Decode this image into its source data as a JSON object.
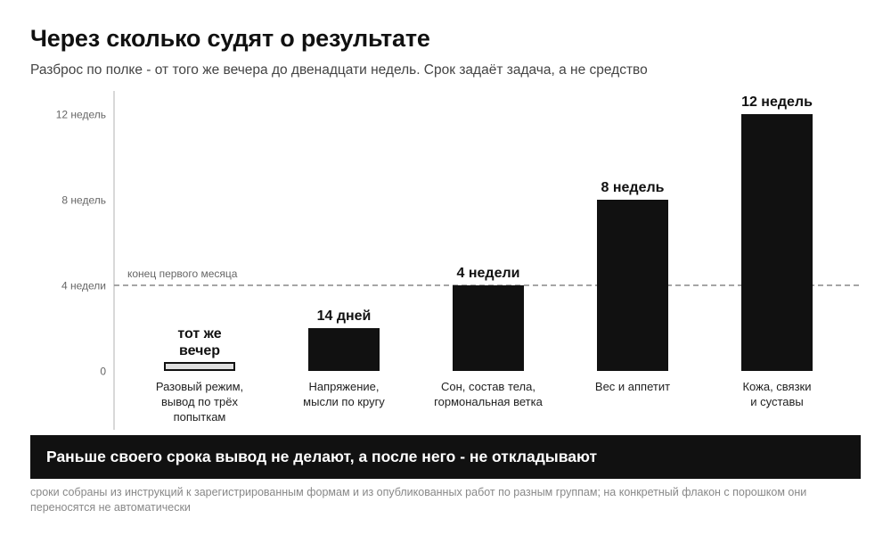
{
  "header": {
    "title": "Через сколько судят о результате",
    "subtitle": "Разброс по полке - от того же вечера до двенадцати недель. Срок задаёт задача, а не средство"
  },
  "chart_data": {
    "type": "bar",
    "categories": [
      [
        "Разовый режим,",
        "вывод по трёх",
        "попыткам"
      ],
      [
        "Напряжение,",
        "мысли по кругу"
      ],
      [
        "Сон, состав тела,",
        "гормональная ветка"
      ],
      [
        "Вес и аппетит"
      ],
      [
        "Кожа, связки",
        "и суставы"
      ]
    ],
    "values": [
      0,
      2,
      4,
      8,
      12
    ],
    "value_labels": [
      [
        "тот же",
        "вечер"
      ],
      [
        "14 дней"
      ],
      [
        "4 недели"
      ],
      [
        "8 недель"
      ],
      [
        "12 недель"
      ]
    ],
    "bar_styles": [
      "outline",
      "solid",
      "solid",
      "solid",
      "solid"
    ],
    "unit": "weeks",
    "yticks": [
      {
        "value": 0,
        "label": "0"
      },
      {
        "value": 4,
        "label": "4 недели"
      },
      {
        "value": 8,
        "label": "8 недель"
      },
      {
        "value": 12,
        "label": "12 недель"
      }
    ],
    "ylim": [
      0,
      12
    ],
    "reference_line": {
      "value": 4,
      "label": "конец первого месяца"
    },
    "grid": false
  },
  "banner": {
    "text": "Раньше своего срока вывод не делают, а после него - не откладывают"
  },
  "footnote": {
    "text": "сроки собраны из инструкций к зарегистрированным формам и из опубликованных работ по разным группам; на конкретный флакон с порошком они переносятся не автоматически"
  },
  "colors": {
    "bar": "#111111",
    "outline_bar_fill": "#e0e0e0",
    "axis": "#cccccc",
    "reference_line": "#888888",
    "tick_text": "#666666",
    "banner_bg": "#111111",
    "banner_text": "#ffffff"
  }
}
